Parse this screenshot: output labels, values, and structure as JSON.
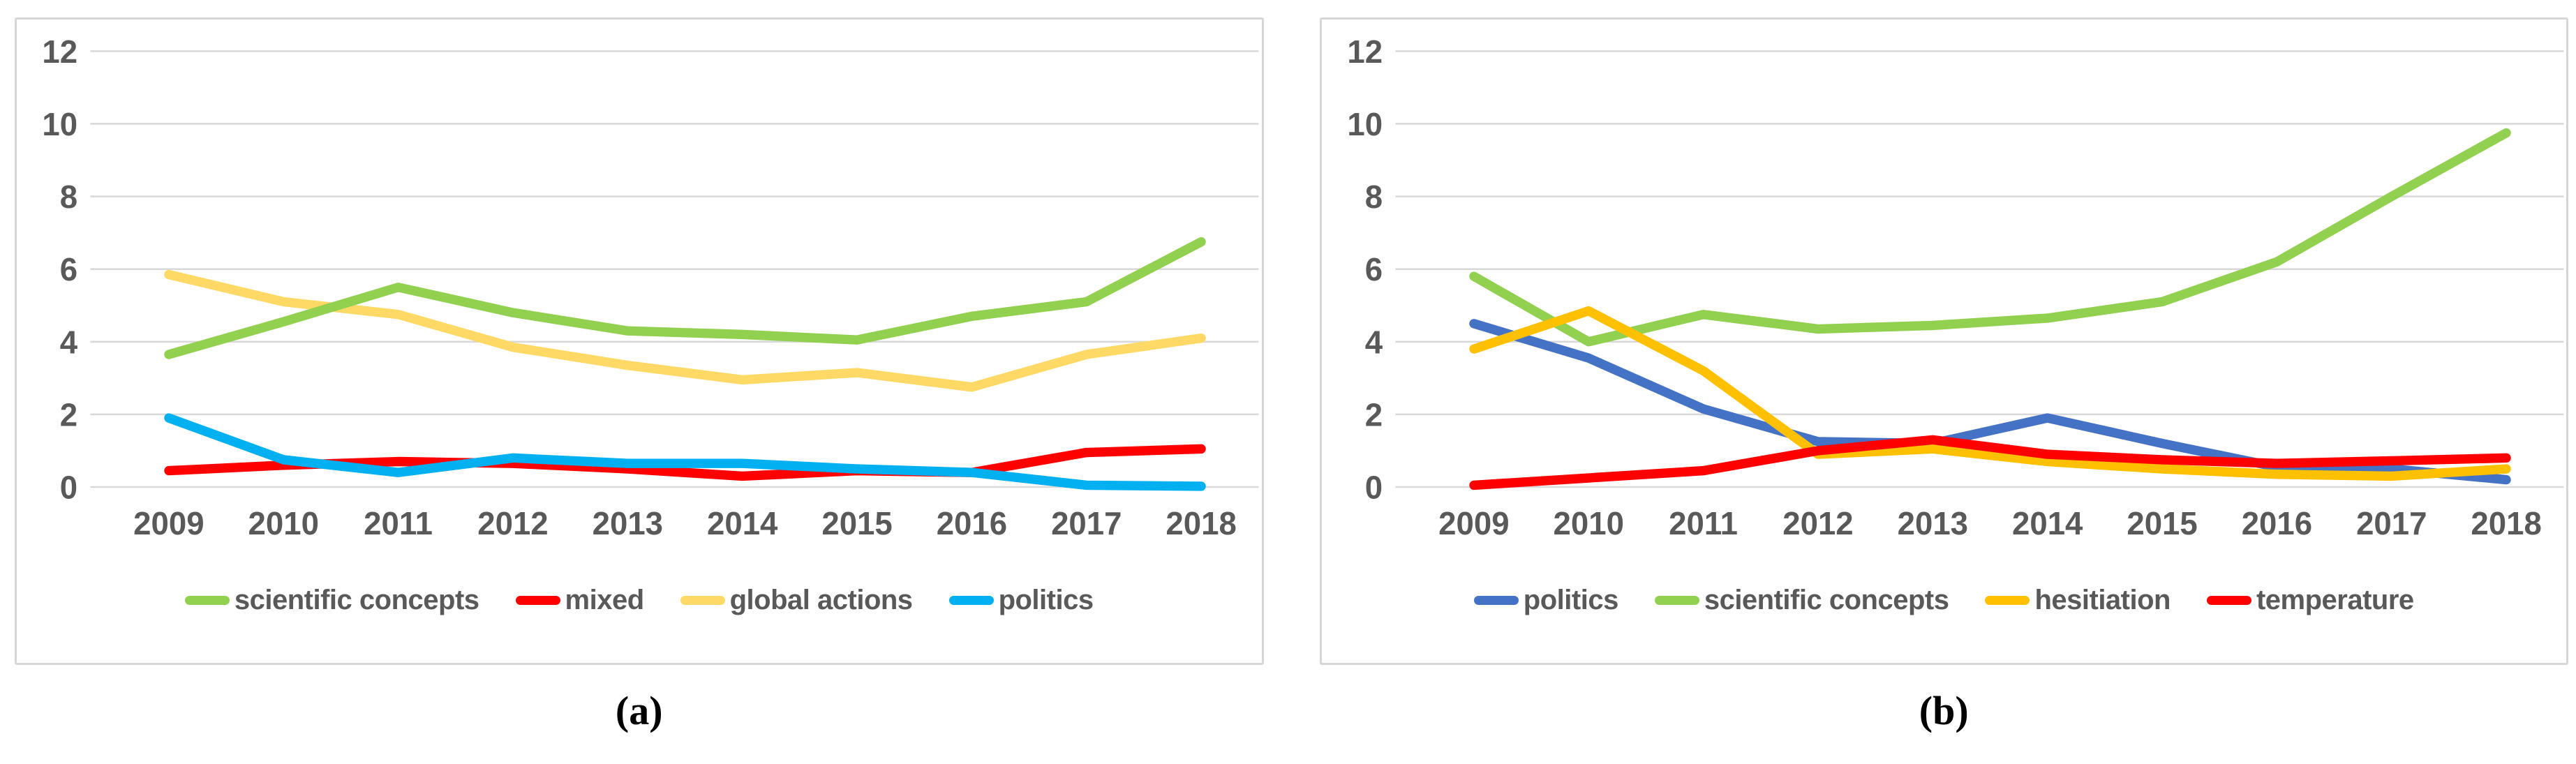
{
  "figure": {
    "axis_color": "#595959",
    "gridline_color": "#D9D9D9",
    "panel_border_color": "#D6D6D6",
    "background_color": "#FFFFFF"
  },
  "chart_data": [
    {
      "type": "line",
      "panel": "a",
      "caption": "(a)",
      "title": "",
      "xlabel": "",
      "ylabel": "",
      "x": [
        "2009",
        "2010",
        "2011",
        "2012",
        "2013",
        "2014",
        "2015",
        "2016",
        "2017",
        "2018"
      ],
      "ylim": [
        0,
        12
      ],
      "y_ticks": [
        0,
        2,
        4,
        6,
        8,
        10,
        12
      ],
      "grid": "horizontal",
      "legend_position": "bottom",
      "series": [
        {
          "name": "scientific concepts",
          "color": "#92D050",
          "values": [
            3.65,
            4.55,
            5.5,
            4.8,
            4.3,
            4.2,
            4.05,
            4.7,
            5.1,
            6.75
          ]
        },
        {
          "name": "mixed",
          "color": "#FF0000",
          "values": [
            0.45,
            0.6,
            0.7,
            0.65,
            0.5,
            0.3,
            0.45,
            0.4,
            0.95,
            1.05
          ]
        },
        {
          "name": "global actions",
          "color": "#FFD966",
          "values": [
            5.85,
            5.1,
            4.75,
            3.85,
            3.35,
            2.95,
            3.15,
            2.75,
            3.65,
            4.1
          ]
        },
        {
          "name": "politics",
          "color": "#00B0F0",
          "values": [
            1.9,
            0.75,
            0.4,
            0.8,
            0.65,
            0.65,
            0.5,
            0.4,
            0.05,
            0.02
          ]
        }
      ]
    },
    {
      "type": "line",
      "panel": "b",
      "caption": "(b)",
      "title": "",
      "xlabel": "",
      "ylabel": "",
      "x": [
        "2009",
        "2010",
        "2011",
        "2012",
        "2013",
        "2014",
        "2015",
        "2016",
        "2017",
        "2018"
      ],
      "ylim": [
        0,
        12
      ],
      "y_ticks": [
        0,
        2,
        4,
        6,
        8,
        10,
        12
      ],
      "grid": "horizontal",
      "legend_position": "bottom",
      "series": [
        {
          "name": "politics",
          "color": "#4472C4",
          "values": [
            4.5,
            3.55,
            2.15,
            1.25,
            1.2,
            1.9,
            1.2,
            0.55,
            0.5,
            0.2
          ]
        },
        {
          "name": "scientific concepts",
          "color": "#92D050",
          "values": [
            5.8,
            4.0,
            4.75,
            4.35,
            4.45,
            4.65,
            5.1,
            6.2,
            8.0,
            9.75
          ]
        },
        {
          "name": "hesitiation",
          "color": "#FFC000",
          "values": [
            3.8,
            4.85,
            3.2,
            0.9,
            1.05,
            0.7,
            0.5,
            0.35,
            0.3,
            0.5
          ]
        },
        {
          "name": "temperature",
          "color": "#FF0000",
          "values": [
            0.05,
            0.25,
            0.45,
            1.0,
            1.3,
            0.9,
            0.75,
            0.65,
            0.72,
            0.8
          ]
        }
      ]
    }
  ]
}
